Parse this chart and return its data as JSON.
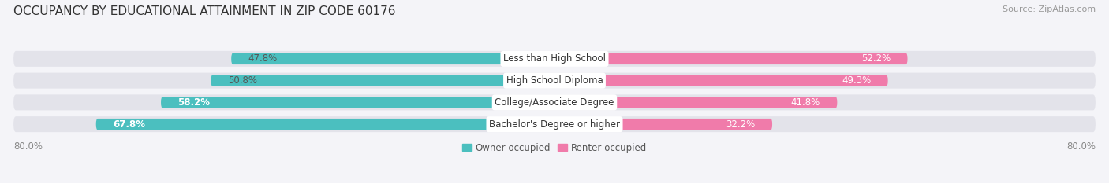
{
  "title": "OCCUPANCY BY EDUCATIONAL ATTAINMENT IN ZIP CODE 60176",
  "source": "Source: ZipAtlas.com",
  "categories": [
    "Less than High School",
    "High School Diploma",
    "College/Associate Degree",
    "Bachelor's Degree or higher"
  ],
  "owner_values": [
    47.8,
    50.8,
    58.2,
    67.8
  ],
  "renter_values": [
    52.2,
    49.3,
    41.8,
    32.2
  ],
  "owner_color": "#4BBFBF",
  "renter_color": "#F07BAA",
  "bar_bg_color": "#E3E3EA",
  "background_color": "#F4F4F8",
  "x_left_label": "80.0%",
  "x_right_label": "80.0%",
  "legend_owner": "Owner-occupied",
  "legend_renter": "Renter-occupied",
  "title_fontsize": 11,
  "source_fontsize": 8,
  "label_fontsize": 8.5,
  "value_fontsize": 8.5
}
